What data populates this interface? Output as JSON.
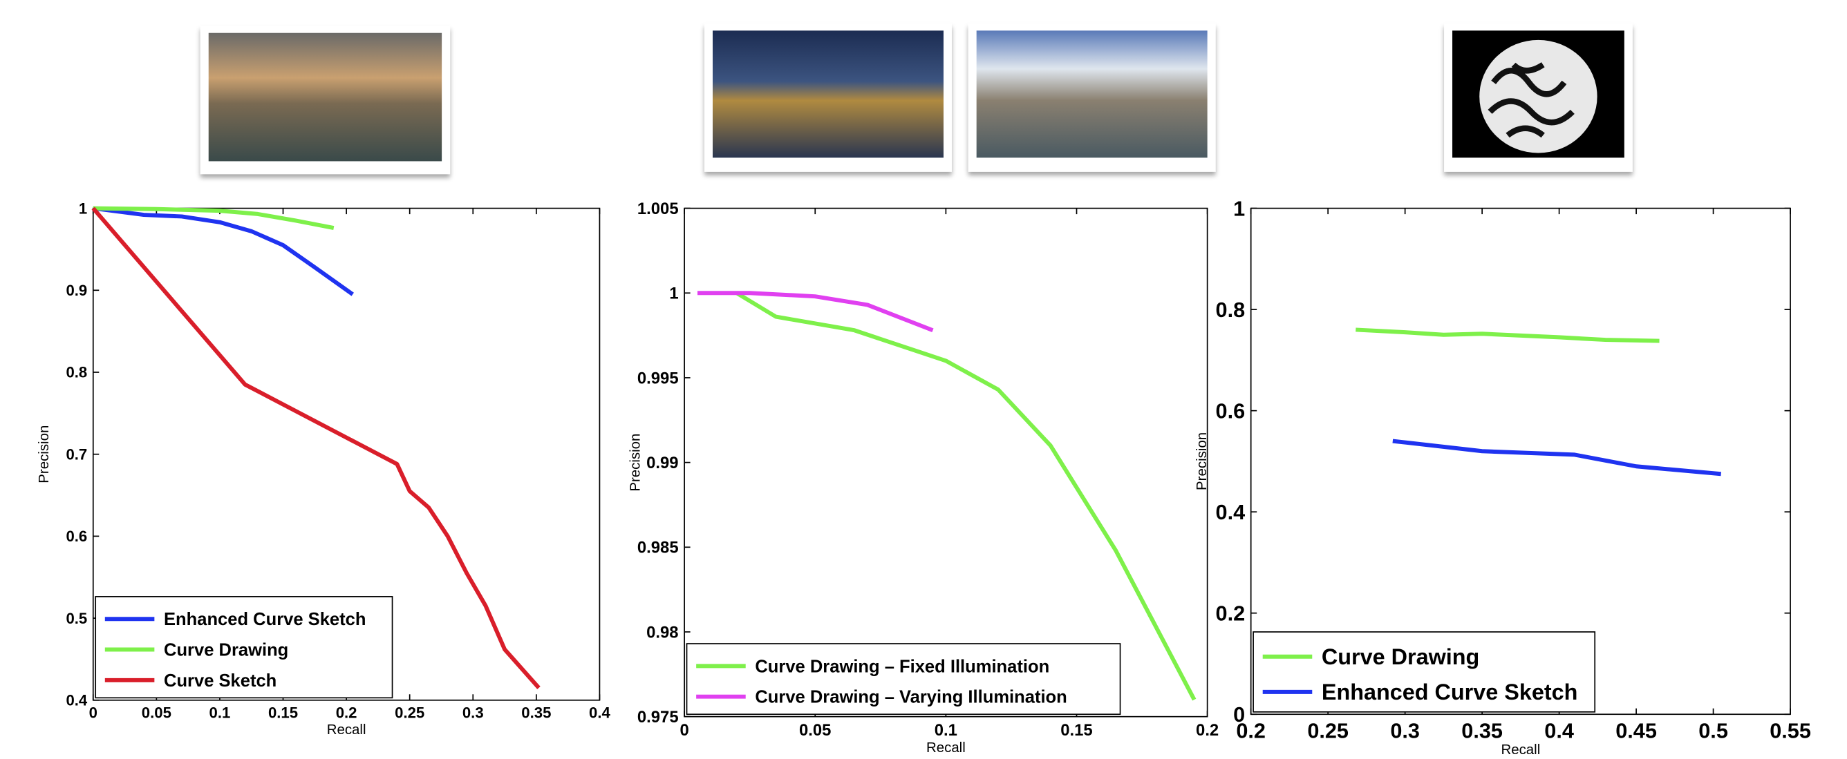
{
  "chart_data": [
    {
      "type": "line",
      "x_label": "Recall",
      "y_label": "Precision",
      "xlim": [
        0,
        0.4
      ],
      "xticks": [
        0,
        0.05,
        0.1,
        0.15,
        0.2,
        0.25,
        0.3,
        0.35,
        0.4
      ],
      "ylim": [
        0.4,
        1
      ],
      "yticks": [
        0.4,
        0.5,
        0.6,
        0.7,
        0.8,
        0.9,
        1
      ],
      "legend": "lower left",
      "series": [
        {
          "name": "Enhanced Curve Sketch",
          "color": "#1f33f0",
          "x": [
            0,
            0.04,
            0.07,
            0.1,
            0.125,
            0.15,
            0.175,
            0.205
          ],
          "values": [
            1,
            0.992,
            0.99,
            0.983,
            0.972,
            0.955,
            0.928,
            0.895
          ]
        },
        {
          "name": "Curve Drawing",
          "color": "#7ef04a",
          "x": [
            0,
            0.05,
            0.1,
            0.13,
            0.16,
            0.19
          ],
          "values": [
            1,
            0.999,
            0.997,
            0.993,
            0.985,
            0.976
          ]
        },
        {
          "name": "Curve Sketch",
          "color": "#d91e2a",
          "x": [
            0,
            0.12,
            0.24,
            0.25,
            0.265,
            0.28,
            0.295,
            0.31,
            0.325,
            0.352
          ],
          "values": [
            1,
            0.785,
            0.688,
            0.655,
            0.635,
            0.6,
            0.555,
            0.515,
            0.462,
            0.415
          ]
        }
      ]
    },
    {
      "type": "line",
      "x_label": "Recall",
      "y_label": "Precision",
      "xlim": [
        0,
        0.2
      ],
      "xticks": [
        0,
        0.05,
        0.1,
        0.15,
        0.2
      ],
      "ylim": [
        0.975,
        1.005
      ],
      "yticks": [
        0.975,
        0.98,
        0.985,
        0.99,
        0.995,
        1,
        1.005
      ],
      "legend": "lower left",
      "series": [
        {
          "name": "Curve Drawing – Fixed Illumination",
          "color": "#7ef04a",
          "x": [
            0.02,
            0.035,
            0.065,
            0.1,
            0.12,
            0.14,
            0.165,
            0.195
          ],
          "values": [
            1,
            0.9986,
            0.9978,
            0.996,
            0.9943,
            0.991,
            0.9848,
            0.976
          ]
        },
        {
          "name": "Curve Drawing – Varying Illumination",
          "color": "#e040f0",
          "x": [
            0.005,
            0.025,
            0.05,
            0.07,
            0.095
          ],
          "values": [
            1,
            1,
            0.9998,
            0.9993,
            0.9978
          ]
        }
      ]
    },
    {
      "type": "line",
      "x_label": "Recall",
      "y_label": "Precision",
      "xlim": [
        0.2,
        0.55
      ],
      "xticks": [
        0.2,
        0.25,
        0.3,
        0.35,
        0.4,
        0.45,
        0.5,
        0.55
      ],
      "ylim": [
        0,
        1
      ],
      "yticks": [
        0,
        0.2,
        0.4,
        0.6,
        0.8,
        1
      ],
      "legend": "lower left",
      "series": [
        {
          "name": "Curve Drawing",
          "color": "#7ef04a",
          "x": [
            0.268,
            0.3,
            0.325,
            0.35,
            0.4,
            0.43,
            0.465
          ],
          "values": [
            0.76,
            0.755,
            0.75,
            0.752,
            0.745,
            0.74,
            0.738
          ]
        },
        {
          "name": "Enhanced Curve Sketch",
          "color": "#1f33f0",
          "x": [
            0.292,
            0.35,
            0.41,
            0.45,
            0.505
          ],
          "values": [
            0.54,
            0.52,
            0.513,
            0.49,
            0.475
          ]
        }
      ]
    }
  ]
}
